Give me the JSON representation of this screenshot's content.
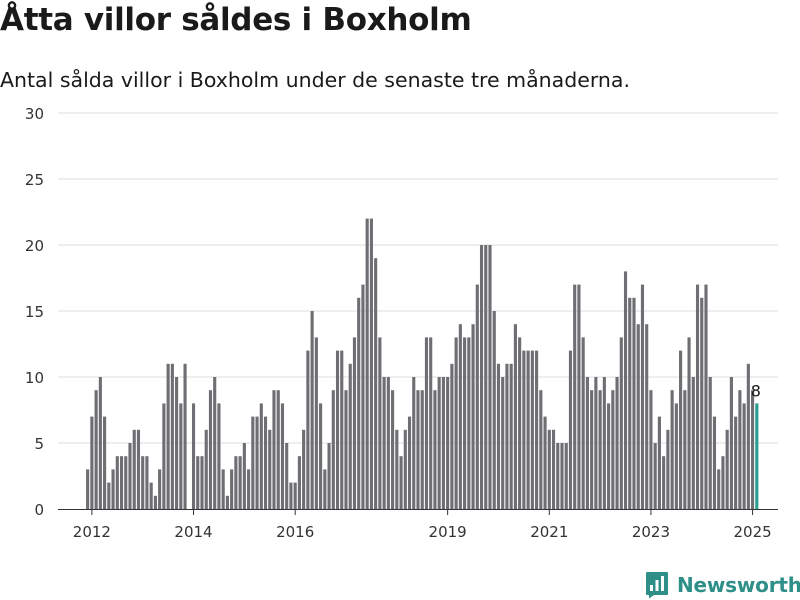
{
  "title": "Åtta villor såldes i Boxholm",
  "subtitle": "Antal sålda villor i Boxholm under de senaste tre månaderna.",
  "brand": {
    "name": "Newsworthy",
    "logo_icon": "newsworthy-chart-logo-icon",
    "color": "#2e8f89"
  },
  "chart_data": {
    "type": "bar",
    "title": "",
    "xlabel": "",
    "ylabel": "",
    "ylim": [
      0,
      30
    ],
    "yticks": [
      0,
      5,
      10,
      15,
      20,
      25,
      30
    ],
    "xlim": [
      "2011-05",
      "2025-07"
    ],
    "xticks": [
      {
        "label": "2012",
        "x": "2012-01"
      },
      {
        "label": "2014",
        "x": "2014-01"
      },
      {
        "label": "2016",
        "x": "2016-01"
      },
      {
        "label": "2019",
        "x": "2019-01"
      },
      {
        "label": "2021",
        "x": "2021-01"
      },
      {
        "label": "2023",
        "x": "2023-01"
      },
      {
        "label": "2025",
        "x": "2025-01"
      }
    ],
    "grid": true,
    "bar_color": "#6e6e73",
    "highlight_color": "#2a9d8f",
    "start_month": "2011-12",
    "values": [
      3,
      7,
      9,
      10,
      7,
      2,
      3,
      4,
      4,
      4,
      5,
      6,
      6,
      4,
      4,
      2,
      1,
      3,
      8,
      11,
      11,
      10,
      8,
      11,
      0,
      8,
      4,
      4,
      6,
      9,
      10,
      8,
      3,
      1,
      3,
      4,
      4,
      5,
      3,
      7,
      7,
      8,
      7,
      6,
      9,
      9,
      8,
      5,
      2,
      2,
      4,
      6,
      12,
      15,
      13,
      8,
      3,
      5,
      9,
      12,
      12,
      9,
      11,
      13,
      16,
      17,
      22,
      22,
      19,
      13,
      10,
      10,
      9,
      6,
      4,
      6,
      7,
      10,
      9,
      9,
      13,
      13,
      9,
      10,
      10,
      10,
      11,
      13,
      14,
      13,
      13,
      14,
      17,
      20,
      20,
      20,
      15,
      11,
      10,
      11,
      11,
      14,
      13,
      12,
      12,
      12,
      12,
      9,
      7,
      6,
      6,
      5,
      5,
      5,
      12,
      17,
      17,
      13,
      10,
      9,
      10,
      9,
      10,
      8,
      9,
      10,
      13,
      18,
      16,
      16,
      14,
      17,
      14,
      9,
      5,
      7,
      4,
      6,
      9,
      8,
      12,
      9,
      13,
      10,
      17,
      16,
      17,
      10,
      7,
      3,
      4,
      6,
      10,
      7,
      9,
      8,
      11,
      9,
      8
    ],
    "highlight_label": "8"
  }
}
